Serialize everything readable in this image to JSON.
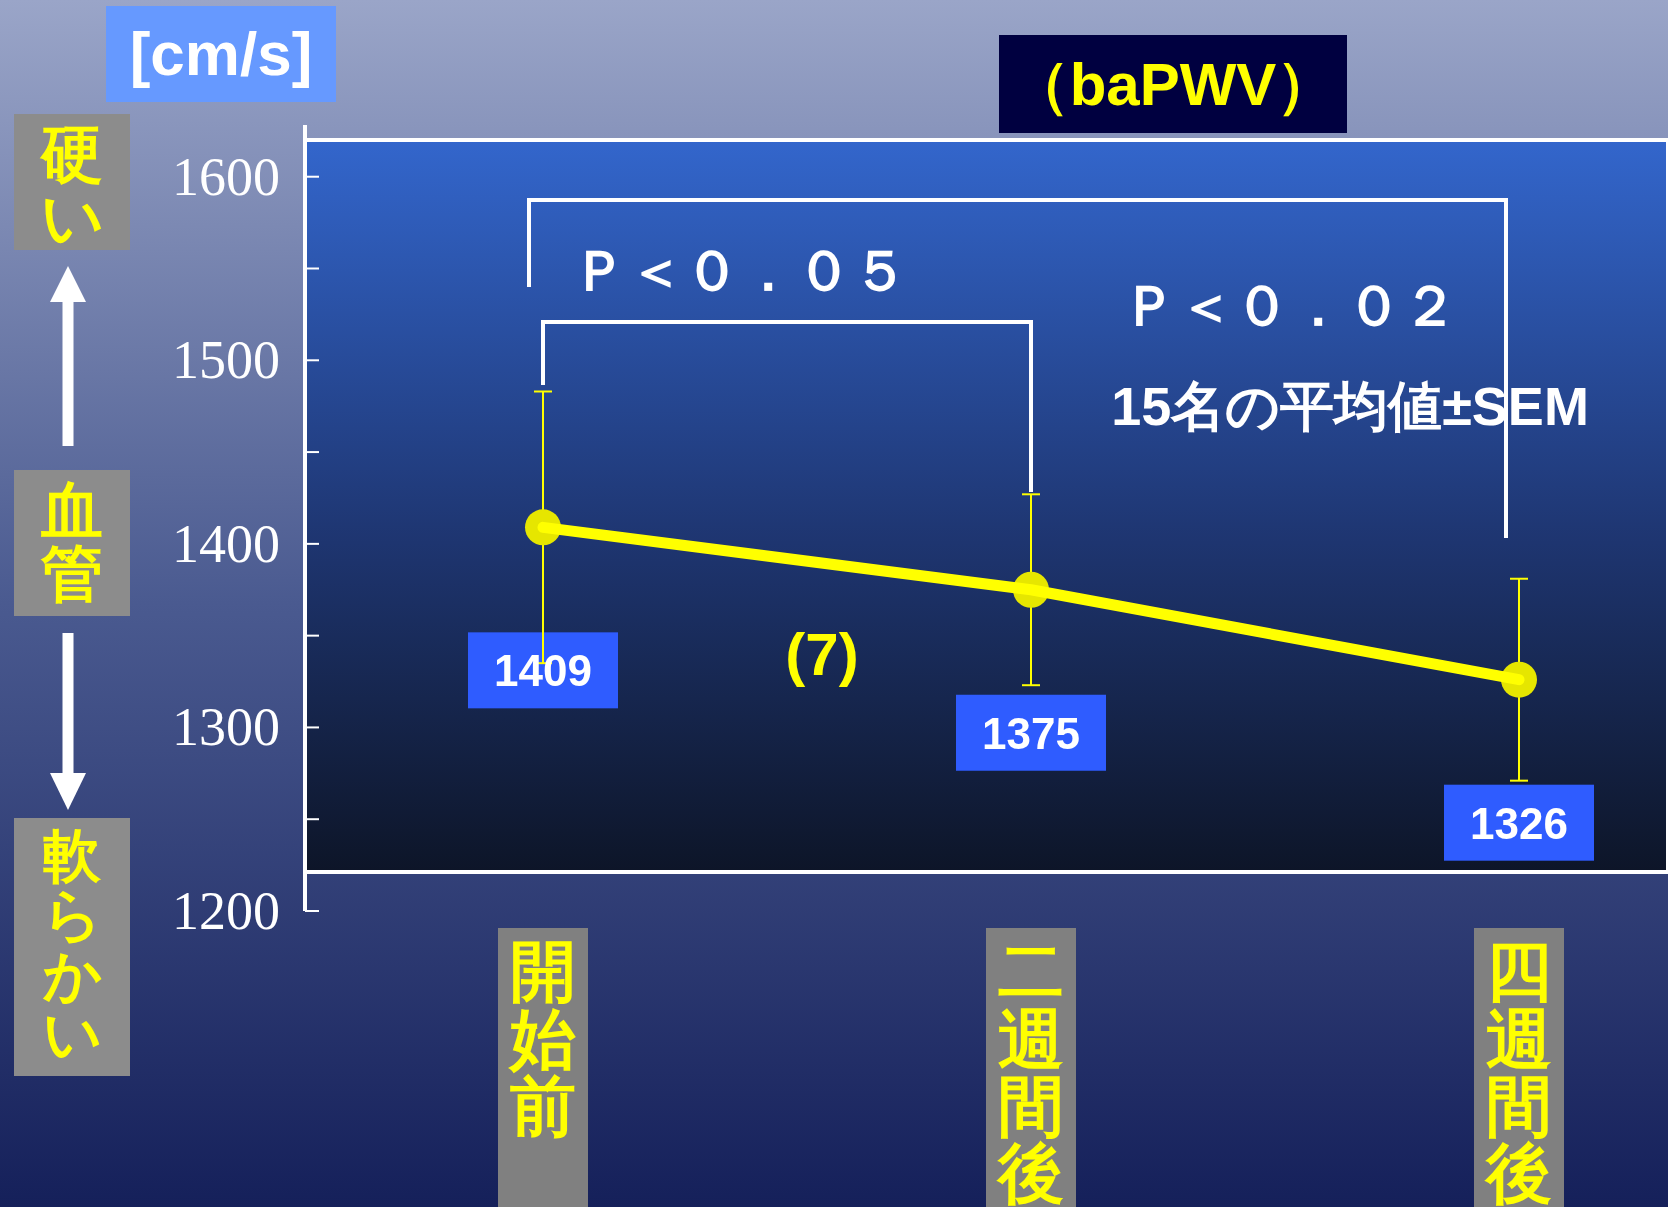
{
  "chart_data": {
    "type": "line",
    "title": "（baPWV）",
    "ylabel": "[cm/s]",
    "categories": [
      "開始前",
      "二週間後",
      "四週間後"
    ],
    "series": [
      {
        "color": "#ffff00",
        "values": [
          1409,
          1375,
          1326
        ],
        "errors": [
          74,
          52,
          55
        ]
      }
    ],
    "data_labels": true,
    "marker": "circle",
    "line_style": "solid",
    "grid": false,
    "ylim": [
      1200,
      1620
    ],
    "yticks": [
      1200,
      {
        "value": 1250,
        "label": null
      },
      1300,
      {
        "value": 1350,
        "label": null
      },
      1400,
      {
        "value": 1450,
        "label": null
      },
      1500,
      {
        "value": 1550,
        "label": null
      },
      1600
    ],
    "annotations": [
      "Ｐ＜０．０５",
      "Ｐ＜０．０２",
      "15名の平均値±SEM",
      "(7)",
      "硬い",
      "血管",
      "軟らかい"
    ]
  }
}
